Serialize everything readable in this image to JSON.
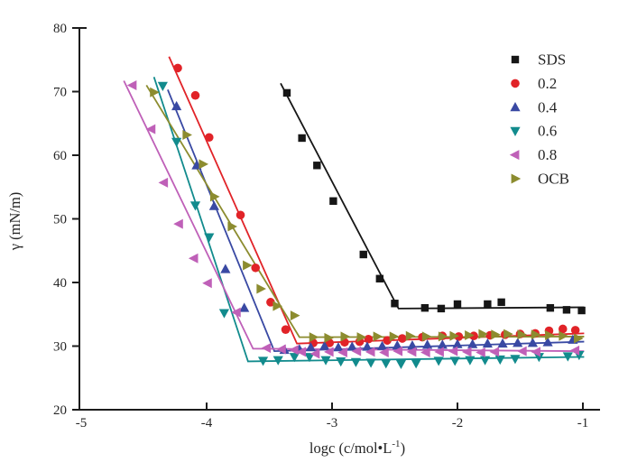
{
  "figure": {
    "background": "#ffffff",
    "axis_color": "#1c1c1c"
  },
  "chart_data": {
    "type": "scatter",
    "title": "",
    "xlabel": {
      "main": "logc (c/mol•L",
      "sup": "-1",
      "end": ")"
    },
    "ylabel": "γ (mN/m)",
    "xlim": [
      -5,
      -0.85
    ],
    "ylim": [
      20,
      80
    ],
    "x_tick_values": [
      -5,
      -4,
      -3,
      -2,
      -1
    ],
    "x_tick_marks": [
      -4,
      -3,
      -2,
      -1
    ],
    "y_tick_values": [
      20,
      30,
      40,
      50,
      60,
      70,
      80
    ],
    "grid": false,
    "legend_position": "upper-right-inside",
    "series": [
      {
        "name": "SDS",
        "color": "#161616",
        "marker": "square",
        "points": [
          [
            -3.36,
            69.8
          ],
          [
            -3.24,
            62.7
          ],
          [
            -3.12,
            58.4
          ],
          [
            -2.99,
            52.8
          ],
          [
            -2.75,
            44.4
          ],
          [
            -2.62,
            40.6
          ],
          [
            -2.5,
            36.7
          ],
          [
            -2.26,
            36.0
          ],
          [
            -2.13,
            35.9
          ],
          [
            -2.0,
            36.6
          ],
          [
            -1.76,
            36.6
          ],
          [
            -1.65,
            36.9
          ],
          [
            -1.26,
            36.0
          ],
          [
            -1.13,
            35.7
          ],
          [
            -1.01,
            35.6
          ]
        ],
        "trend": [
          [
            -3.41,
            71.3
          ],
          [
            -2.47,
            35.9
          ],
          [
            -0.99,
            36.1
          ]
        ]
      },
      {
        "name": "0.2",
        "color": "#e12328",
        "marker": "circle",
        "points": [
          [
            -4.23,
            73.7
          ],
          [
            -4.09,
            69.4
          ],
          [
            -3.98,
            62.8
          ],
          [
            -3.73,
            50.6
          ],
          [
            -3.61,
            42.3
          ],
          [
            -3.49,
            36.9
          ],
          [
            -3.37,
            32.6
          ],
          [
            -3.15,
            30.5
          ],
          [
            -3.02,
            30.5
          ],
          [
            -2.9,
            30.6
          ],
          [
            -2.78,
            30.7
          ],
          [
            -2.71,
            31.1
          ],
          [
            -2.56,
            30.9
          ],
          [
            -2.44,
            31.2
          ],
          [
            -2.28,
            31.4
          ],
          [
            -2.12,
            31.6
          ],
          [
            -1.99,
            31.5
          ],
          [
            -1.87,
            31.6
          ],
          [
            -1.74,
            31.7
          ],
          [
            -1.62,
            31.8
          ],
          [
            -1.5,
            31.9
          ],
          [
            -1.38,
            32.0
          ],
          [
            -1.27,
            32.4
          ],
          [
            -1.16,
            32.7
          ],
          [
            -1.06,
            32.5
          ]
        ],
        "trend": [
          [
            -4.3,
            75.5
          ],
          [
            -3.28,
            30.4
          ],
          [
            -0.99,
            32.0
          ]
        ]
      },
      {
        "name": "0.4",
        "color": "#3949a3",
        "marker": "triangle-up",
        "points": [
          [
            -4.24,
            67.7
          ],
          [
            -4.08,
            58.4
          ],
          [
            -3.94,
            52.0
          ],
          [
            -3.85,
            42.1
          ],
          [
            -3.7,
            36.0
          ],
          [
            -3.38,
            29.4
          ],
          [
            -3.26,
            29.5
          ],
          [
            -3.17,
            29.8
          ],
          [
            -3.06,
            30.0
          ],
          [
            -2.95,
            29.8
          ],
          [
            -2.84,
            29.9
          ],
          [
            -2.72,
            29.9
          ],
          [
            -2.6,
            30.0
          ],
          [
            -2.48,
            30.1
          ],
          [
            -2.36,
            30.1
          ],
          [
            -2.24,
            30.2
          ],
          [
            -2.12,
            30.2
          ],
          [
            -2.0,
            30.3
          ],
          [
            -1.88,
            30.3
          ],
          [
            -1.76,
            30.4
          ],
          [
            -1.64,
            30.4
          ],
          [
            -1.52,
            30.5
          ],
          [
            -1.4,
            30.5
          ],
          [
            -1.28,
            30.6
          ],
          [
            -1.08,
            31.0
          ]
        ],
        "trend": [
          [
            -4.31,
            70.3
          ],
          [
            -3.46,
            29.2
          ],
          [
            -0.99,
            30.7
          ]
        ]
      },
      {
        "name": "0.6",
        "color": "#128b8d",
        "marker": "triangle-down",
        "points": [
          [
            -4.35,
            70.9
          ],
          [
            -4.24,
            62.1
          ],
          [
            -4.09,
            52.1
          ],
          [
            -3.98,
            47.1
          ],
          [
            -3.86,
            35.2
          ],
          [
            -3.55,
            27.7
          ],
          [
            -3.43,
            27.8
          ],
          [
            -3.3,
            28.3
          ],
          [
            -3.18,
            28.3
          ],
          [
            -3.05,
            27.8
          ],
          [
            -2.93,
            27.6
          ],
          [
            -2.81,
            27.5
          ],
          [
            -2.69,
            27.4
          ],
          [
            -2.57,
            27.3
          ],
          [
            -2.45,
            27.2
          ],
          [
            -2.33,
            27.3
          ],
          [
            -2.15,
            27.7
          ],
          [
            -2.02,
            27.7
          ],
          [
            -1.9,
            27.8
          ],
          [
            -1.78,
            27.8
          ],
          [
            -1.66,
            27.9
          ],
          [
            -1.54,
            28.0
          ],
          [
            -1.35,
            28.3
          ],
          [
            -1.12,
            28.4
          ],
          [
            -1.03,
            28.6
          ]
        ],
        "trend": [
          [
            -4.42,
            72.3
          ],
          [
            -3.67,
            27.6
          ],
          [
            -0.99,
            28.3
          ]
        ]
      },
      {
        "name": "0.8",
        "color": "#bf60b8",
        "marker": "triangle-left",
        "points": [
          [
            -4.59,
            71.0
          ],
          [
            -4.44,
            64.1
          ],
          [
            -4.34,
            55.7
          ],
          [
            -4.22,
            49.2
          ],
          [
            -4.1,
            43.8
          ],
          [
            -3.99,
            39.9
          ],
          [
            -3.76,
            35.3
          ],
          [
            -3.52,
            29.7
          ],
          [
            -3.4,
            29.5
          ],
          [
            -3.3,
            29.4
          ],
          [
            -3.24,
            29.1
          ],
          [
            -3.13,
            28.8
          ],
          [
            -3.02,
            29.1
          ],
          [
            -2.91,
            29.0
          ],
          [
            -2.8,
            29.2
          ],
          [
            -2.69,
            29.1
          ],
          [
            -2.58,
            29.0
          ],
          [
            -2.47,
            29.2
          ],
          [
            -2.36,
            29.1
          ],
          [
            -2.25,
            29.0
          ],
          [
            -2.14,
            29.1
          ],
          [
            -2.03,
            29.2
          ],
          [
            -1.92,
            29.1
          ],
          [
            -1.81,
            29.0
          ],
          [
            -1.7,
            29.1
          ],
          [
            -1.48,
            29.2
          ],
          [
            -1.37,
            29.1
          ],
          [
            -1.06,
            29.3
          ]
        ],
        "trend": [
          [
            -4.66,
            71.7
          ],
          [
            -3.63,
            29.6
          ],
          [
            -0.99,
            29.2
          ]
        ]
      },
      {
        "name": "OCB",
        "color": "#8c8c2f",
        "marker": "triangle-right",
        "points": [
          [
            -4.42,
            69.9
          ],
          [
            -4.16,
            63.2
          ],
          [
            -4.03,
            58.6
          ],
          [
            -3.94,
            53.5
          ],
          [
            -3.8,
            48.8
          ],
          [
            -3.68,
            42.7
          ],
          [
            -3.57,
            39.0
          ],
          [
            -3.44,
            36.3
          ],
          [
            -3.3,
            34.8
          ],
          [
            -3.15,
            31.4
          ],
          [
            -3.03,
            31.3
          ],
          [
            -2.9,
            31.5
          ],
          [
            -2.77,
            31.4
          ],
          [
            -2.64,
            31.5
          ],
          [
            -2.51,
            31.5
          ],
          [
            -2.38,
            31.6
          ],
          [
            -2.25,
            31.5
          ],
          [
            -2.12,
            31.5
          ],
          [
            -2.03,
            31.6
          ],
          [
            -1.91,
            31.7
          ],
          [
            -1.8,
            31.9
          ],
          [
            -1.7,
            31.8
          ],
          [
            -1.6,
            31.9
          ],
          [
            -1.49,
            31.8
          ],
          [
            -1.38,
            31.8
          ],
          [
            -1.27,
            31.7
          ],
          [
            -1.16,
            31.6
          ],
          [
            -1.04,
            31.2
          ]
        ],
        "trend": [
          [
            -4.48,
            71.0
          ],
          [
            -3.26,
            31.4
          ],
          [
            -0.99,
            31.5
          ]
        ]
      }
    ]
  }
}
